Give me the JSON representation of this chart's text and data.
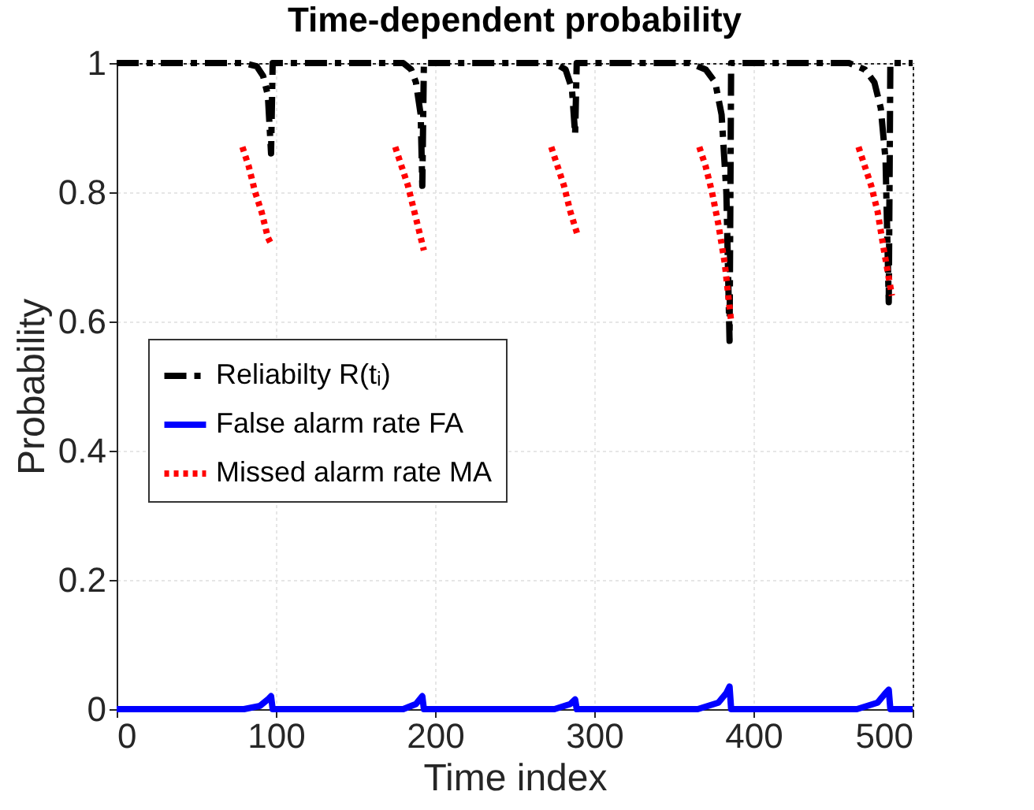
{
  "chart_data": {
    "type": "line",
    "title": "Time-dependent probability",
    "xlabel": "Time index",
    "ylabel": "Probability",
    "xlim": [
      0,
      500
    ],
    "xticks": [
      0,
      100,
      200,
      300,
      400,
      500
    ],
    "ylim": [
      0,
      1
    ],
    "yticks": [
      0,
      0.2,
      0.4,
      0.6,
      0.8,
      1
    ],
    "grid": true,
    "legend": "left",
    "marker": "none",
    "series": [
      {
        "name": "Reliabilty R(tᵢ)",
        "color": "#000000",
        "line_style": "dashdot",
        "x": [
          0,
          80,
          88,
          92,
          95,
          97,
          98,
          180,
          185,
          188,
          191,
          192,
          193,
          275,
          282,
          286,
          288,
          289,
          360,
          370,
          376,
          380,
          383,
          385,
          386,
          460,
          470,
          476,
          480,
          483,
          485,
          486,
          500
        ],
        "values": [
          1,
          1,
          0.995,
          0.98,
          0.95,
          0.86,
          1,
          1,
          0.99,
          0.97,
          0.92,
          0.81,
          1,
          1,
          0.99,
          0.96,
          0.89,
          1,
          1,
          0.99,
          0.97,
          0.92,
          0.8,
          0.57,
          1,
          1,
          0.99,
          0.97,
          0.93,
          0.85,
          0.63,
          1,
          1
        ]
      },
      {
        "name": "False alarm rate FA",
        "color": "#0000ff",
        "line_style": "solid",
        "x": [
          0,
          80,
          90,
          95,
          97,
          98,
          180,
          188,
          192,
          193,
          275,
          285,
          288,
          289,
          365,
          378,
          383,
          385,
          386,
          465,
          478,
          483,
          485,
          486,
          500
        ],
        "values": [
          0,
          0,
          0.005,
          0.015,
          0.02,
          0,
          0,
          0.008,
          0.02,
          0,
          0,
          0.008,
          0.015,
          0,
          0,
          0.01,
          0.025,
          0.035,
          0,
          0,
          0.01,
          0.025,
          0.03,
          0,
          0
        ]
      },
      {
        "name": "Missed alarm rate MA",
        "color": "#ff0000",
        "line_style": "dotted",
        "x": [
          79,
          83,
          87,
          91,
          95,
          97,
          98,
          175,
          179,
          183,
          187,
          191,
          193,
          194,
          273,
          277,
          281,
          285,
          290,
          291,
          366,
          370,
          374,
          378,
          382,
          386,
          387,
          466,
          470,
          474,
          478,
          482,
          487
        ],
        "values": [
          0.87,
          0.84,
          0.8,
          0.77,
          0.73,
          0.72,
          null,
          0.87,
          0.84,
          0.81,
          0.77,
          0.73,
          0.71,
          null,
          0.87,
          0.84,
          0.81,
          0.77,
          0.73,
          null,
          0.87,
          0.84,
          0.8,
          0.75,
          0.69,
          0.6,
          null,
          0.87,
          0.84,
          0.81,
          0.77,
          0.71,
          0.64
        ]
      }
    ]
  }
}
